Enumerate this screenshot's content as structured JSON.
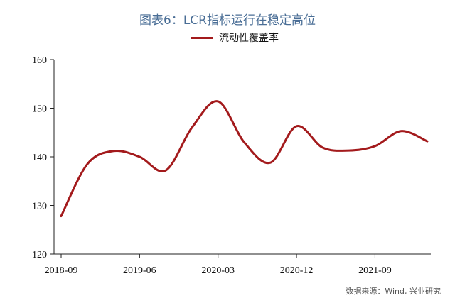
{
  "title": "图表6：LCR指标运行在稳定高位",
  "legend_label": "流动性覆盖率",
  "source": "数据来源：Wind, 兴业研究",
  "line_color": "#a31a1c",
  "chart_data": {
    "type": "line",
    "title": "图表6：LCR指标运行在稳定高位",
    "xlabel": "",
    "ylabel": "",
    "ylim": [
      120,
      160
    ],
    "yticks": [
      120,
      130,
      140,
      150,
      160
    ],
    "xticks": [
      "2018-09",
      "2019-06",
      "2020-03",
      "2020-12",
      "2021-09"
    ],
    "grid": false,
    "legend": "top-center",
    "x": [
      "2018-09",
      "2018-12",
      "2019-03",
      "2019-06",
      "2019-09",
      "2019-12",
      "2020-03",
      "2020-06",
      "2020-09",
      "2020-12",
      "2021-03",
      "2021-06",
      "2021-09",
      "2021-12",
      "2022-03"
    ],
    "series": [
      {
        "name": "流动性覆盖率",
        "values": [
          127.8,
          138.5,
          141.2,
          140.0,
          137.2,
          146.0,
          151.4,
          143.0,
          138.8,
          146.3,
          141.9,
          141.3,
          142.2,
          145.3,
          143.2
        ]
      }
    ]
  }
}
